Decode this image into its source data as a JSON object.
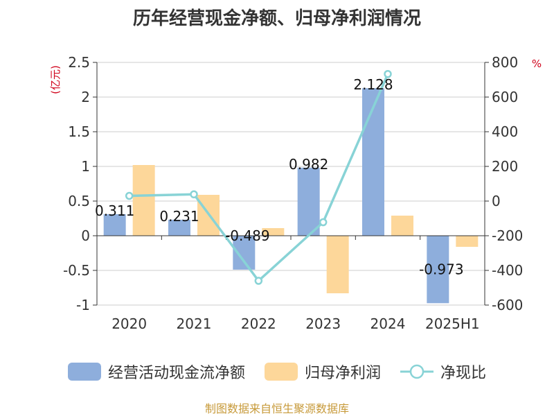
{
  "chart_data": {
    "type": "bar",
    "title": "历年经营现金净额、归母净利润情况",
    "categories": [
      "2020",
      "2021",
      "2022",
      "2023",
      "2024",
      "2025H1"
    ],
    "series": [
      {
        "name": "经营活动现金流净额",
        "kind": "bar",
        "axis": "left",
        "color": "#8eaedc",
        "values": [
          0.311,
          0.231,
          -0.489,
          0.982,
          2.128,
          -0.973
        ],
        "labels": [
          "0.311",
          "0.231",
          "-0.489",
          "0.982",
          "2.128",
          "-0.973"
        ]
      },
      {
        "name": "归母净利润",
        "kind": "bar",
        "axis": "left",
        "color": "#fdd79a",
        "values": [
          1.02,
          0.59,
          0.11,
          -0.83,
          0.29,
          -0.16
        ]
      },
      {
        "name": "净现比",
        "kind": "line",
        "axis": "right",
        "color": "#88d3d6",
        "values": [
          30,
          39,
          -460,
          -122,
          733,
          null
        ]
      }
    ],
    "y_left": {
      "unit": "(亿元)",
      "range": [
        -1,
        2.5
      ],
      "ticks": [
        2.5,
        2,
        1.5,
        1,
        0.5,
        0,
        -0.5,
        -1
      ],
      "tick_labels": [
        "2.5",
        "2",
        "1.5",
        "1",
        "0.5",
        "0",
        "-0.5",
        "-1"
      ]
    },
    "y_right": {
      "unit": "%",
      "range": [
        -600,
        800
      ],
      "ticks": [
        800,
        600,
        400,
        200,
        0,
        -200,
        -400,
        -600
      ],
      "tick_labels": [
        "800",
        "600",
        "400",
        "200",
        "0",
        "-200",
        "-400",
        "-600"
      ]
    },
    "grid": true,
    "legend_position": "bottom",
    "source": "制图数据来自恒生聚源数据库"
  }
}
